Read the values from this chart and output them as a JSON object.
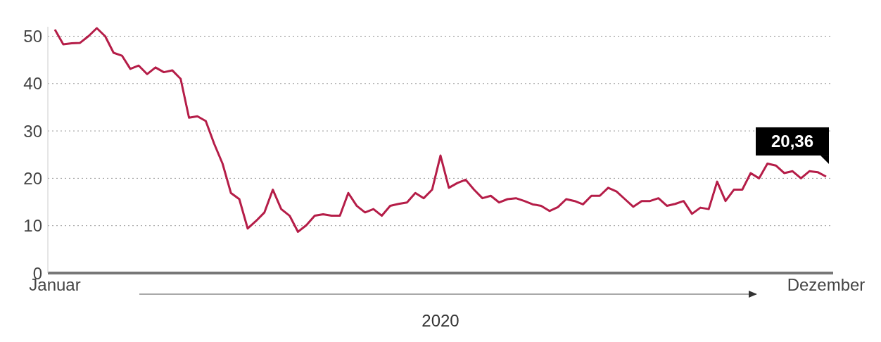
{
  "chart_data": {
    "type": "line",
    "xlabel": "2020",
    "categories": [
      "Januar",
      null,
      null,
      null,
      null,
      null,
      null,
      null,
      null,
      null,
      null,
      null,
      null,
      null,
      null,
      null,
      null,
      null,
      null,
      null,
      null,
      null,
      null,
      null,
      null,
      null,
      null,
      null,
      null,
      null,
      null,
      null,
      null,
      null,
      null,
      null,
      null,
      null,
      null,
      null,
      null,
      null,
      null,
      null,
      null,
      null,
      null,
      null,
      null,
      null,
      null,
      null,
      null,
      null,
      null,
      null,
      null,
      null,
      null,
      null,
      null,
      null,
      null,
      null,
      null,
      null,
      null,
      null,
      null,
      null,
      null,
      null,
      null,
      null,
      null,
      null,
      null,
      null,
      null,
      null,
      null,
      null,
      null,
      null,
      null,
      null,
      null,
      null,
      null,
      null,
      null,
      null,
      "Dezember"
    ],
    "series": [
      {
        "color": "#b51d48",
        "values": [
          51.4,
          48.3,
          48.5,
          48.6,
          50,
          51.7,
          50,
          46.5,
          45.9,
          43.1,
          43.8,
          42,
          43.4,
          42.4,
          42.8,
          41,
          32.8,
          33.1,
          32.1,
          27.3,
          23.1,
          16.9,
          15.6,
          9.4,
          11,
          12.8,
          17.6,
          13.5,
          12.1,
          8.7,
          10.1,
          12.1,
          12.4,
          12.1,
          12.1,
          16.9,
          14.2,
          12.8,
          13.5,
          12.1,
          14.2,
          14.6,
          14.9,
          16.9,
          15.8,
          17.6,
          24.8,
          18,
          19,
          19.7,
          17.6,
          15.8,
          16.3,
          14.9,
          15.6,
          15.8,
          15.2,
          14.5,
          14.2,
          13.1,
          13.9,
          15.6,
          15.2,
          14.5,
          16.3,
          16.3,
          18,
          17.2,
          15.6,
          14,
          15.2,
          15.2,
          15.8,
          14.2,
          14.6,
          15.2,
          12.5,
          13.8,
          13.5,
          19.3,
          15.2,
          17.6,
          17.6,
          21.1,
          20,
          23.1,
          22.7,
          21.1,
          21.5,
          20,
          21.5,
          21.3,
          20.36
        ]
      }
    ],
    "ylim": [
      0,
      52
    ],
    "yticks": [
      0,
      10,
      20,
      30,
      40,
      50
    ],
    "grid": "y",
    "marker": "none",
    "line_style": "solid",
    "annotations": [
      {
        "text": "20,36",
        "x": "Dezember",
        "y": 20.36
      }
    ]
  }
}
